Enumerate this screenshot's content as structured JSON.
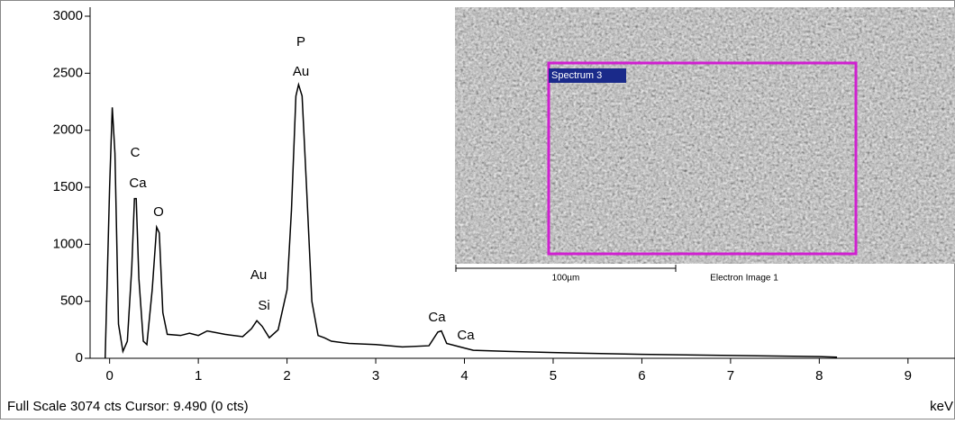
{
  "chart_data": {
    "type": "line",
    "x": [
      -0.05,
      0.0,
      0.03,
      0.06,
      0.1,
      0.15,
      0.2,
      0.25,
      0.28,
      0.3,
      0.33,
      0.38,
      0.42,
      0.48,
      0.53,
      0.56,
      0.6,
      0.65,
      0.8,
      0.9,
      1.0,
      1.1,
      1.3,
      1.5,
      1.6,
      1.66,
      1.72,
      1.8,
      1.9,
      2.0,
      2.05,
      2.1,
      2.13,
      2.17,
      2.22,
      2.28,
      2.35,
      2.42,
      2.5,
      2.7,
      3.0,
      3.3,
      3.6,
      3.7,
      3.74,
      3.8,
      4.0,
      4.1,
      4.5,
      5.0,
      6.0,
      7.0,
      8.0,
      8.2
    ],
    "series": [
      {
        "color": "#000000",
        "values": [
          0,
          1500,
          2200,
          1800,
          300,
          60,
          150,
          800,
          1400,
          1400,
          700,
          150,
          120,
          600,
          1150,
          1100,
          400,
          210,
          200,
          220,
          200,
          240,
          210,
          190,
          260,
          330,
          280,
          180,
          250,
          600,
          1300,
          2300,
          2400,
          2300,
          1500,
          500,
          200,
          180,
          150,
          130,
          120,
          100,
          110,
          230,
          240,
          130,
          90,
          70,
          60,
          50,
          35,
          25,
          15,
          10
        ]
      }
    ],
    "xlim": [
      -0.22,
      9.53
    ],
    "ylim": [
      0,
      3000
    ],
    "xticks": [
      0,
      1,
      2,
      3,
      4,
      5,
      6,
      7,
      8,
      9
    ],
    "yticks": [
      0,
      500,
      1000,
      1500,
      2000,
      2500,
      3000
    ],
    "x_label": "keV",
    "annotations": [
      "C",
      "Ca",
      "O",
      "P",
      "Au",
      "Au",
      "Si",
      "Ca",
      "Ca"
    ],
    "status": "Full Scale 3074 cts Cursor: 9.490  (0 cts)"
  },
  "inset": {
    "region_label": "Spectrum 3",
    "scale_label": "100µm",
    "caption": "Electron Image 1"
  }
}
